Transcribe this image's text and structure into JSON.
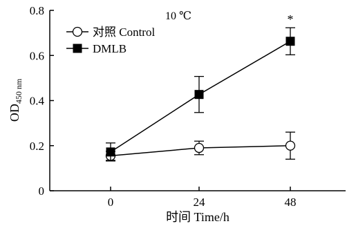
{
  "chart_data": {
    "type": "line",
    "title": "10 ℃",
    "xlabel": "时间 Time/h",
    "ylabel_main": "OD",
    "ylabel_sub": "450 nm",
    "x_categories": [
      "0",
      "24",
      "48"
    ],
    "x_values": [
      0,
      24,
      48
    ],
    "yticks": [
      "0",
      "0.2",
      "0.4",
      "0.6",
      "0.8"
    ],
    "ylim": [
      0,
      0.8
    ],
    "grid": false,
    "legend_position": "top-left",
    "series": [
      {
        "name": "对照 Control",
        "marker": "open-circle",
        "values": [
          0.155,
          0.19,
          0.2
        ],
        "errors": [
          0.02,
          0.03,
          0.06
        ]
      },
      {
        "name": "DMLB",
        "marker": "filled-square",
        "values": [
          0.172,
          0.427,
          0.663
        ],
        "errors": [
          0.04,
          0.08,
          0.06
        ]
      }
    ],
    "annotations": [
      {
        "text": "*",
        "series": 1,
        "index": 2
      }
    ]
  }
}
